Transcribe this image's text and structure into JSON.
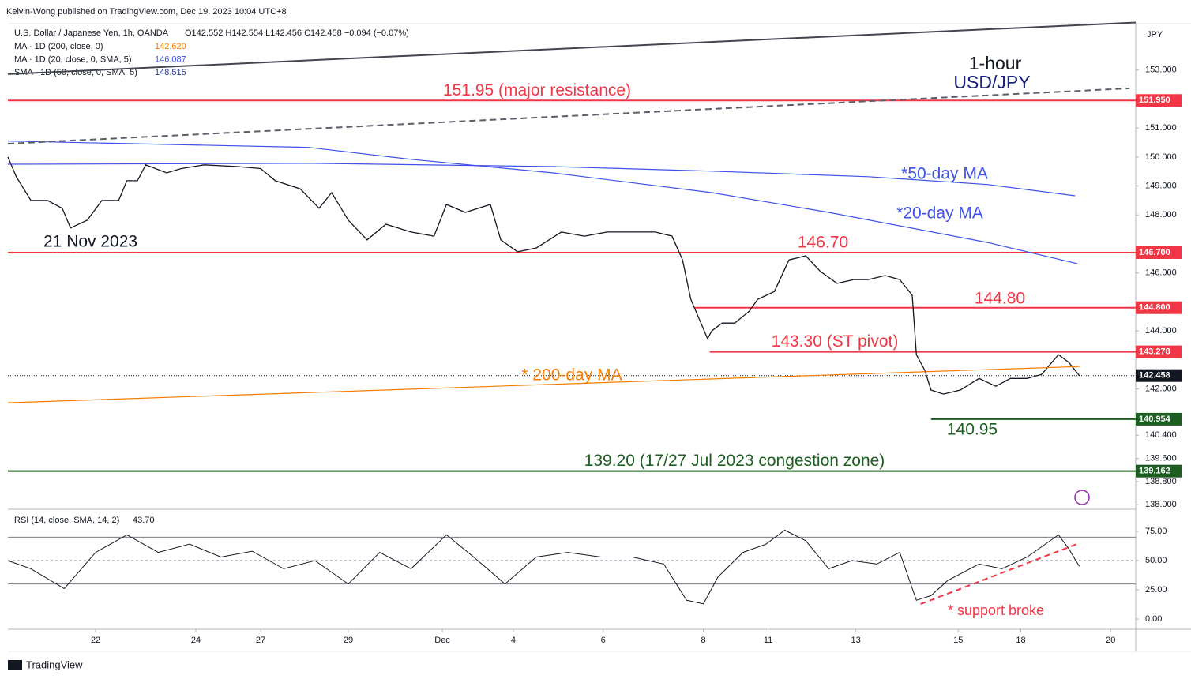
{
  "header": {
    "publisher": "Kelvin-Wong published on TradingView.com, Dec 19, 2023 10:04 UTC+8",
    "footer": "TradingView"
  },
  "legend": {
    "symbol": "U.S. Dollar / Japanese Yen, 1h, OANDA",
    "ohlc": "O142.552  H142.554  L142.456  C142.458  −0.094 (−0.07%)",
    "indicators": [
      {
        "name": "MA · 1D (200, close, 0)",
        "value": "142.620",
        "color": "#f57c00"
      },
      {
        "name": "MA · 1D (20, close, 0, SMA, 5)",
        "value": "146.087",
        "color": "#3f51e8"
      },
      {
        "name": "SMA · 1D (50, close, 0, SMA, 5)",
        "value": "148.515",
        "color": "#283593"
      }
    ]
  },
  "chart_data": {
    "type": "line",
    "title": "1-hour",
    "subtitle": "USD/JPY",
    "y_unit": "JPY",
    "xlim": [
      0,
      540
    ],
    "xticks": [
      {
        "value": 42,
        "label": "22"
      },
      {
        "value": 90,
        "label": "24"
      },
      {
        "value": 121,
        "label": "27"
      },
      {
        "value": 163,
        "label": "29"
      },
      {
        "value": 208,
        "label": "Dec"
      },
      {
        "value": 242,
        "label": "4"
      },
      {
        "value": 285,
        "label": "6"
      },
      {
        "value": 333,
        "label": "8"
      },
      {
        "value": 364,
        "label": "11"
      },
      {
        "value": 406,
        "label": "13"
      },
      {
        "value": 455,
        "label": "15"
      },
      {
        "value": 485,
        "label": "18"
      },
      {
        "value": 528,
        "label": "20"
      }
    ],
    "ylim": [
      137.9,
      154.6
    ],
    "yticks": [
      {
        "value": 153,
        "label": "153.000"
      },
      {
        "value": 151,
        "label": "151.000"
      },
      {
        "value": 150,
        "label": "150.000"
      },
      {
        "value": 149,
        "label": "149.000"
      },
      {
        "value": 148,
        "label": "148.000"
      },
      {
        "value": 146,
        "label": "146.000"
      },
      {
        "value": 144,
        "label": "144.000"
      },
      {
        "value": 142,
        "label": "142.000"
      },
      {
        "value": 140.4,
        "label": "140.400"
      },
      {
        "value": 139.6,
        "label": "139.600"
      },
      {
        "value": 138.8,
        "label": "138.800"
      },
      {
        "value": 138,
        "label": "138.000"
      }
    ],
    "series": [
      {
        "name": "USD/JPY",
        "color": "#131722",
        "x": [
          0,
          4,
          11,
          19,
          26,
          30,
          38,
          45,
          53,
          57,
          62,
          66,
          76,
          83,
          94,
          110,
          121,
          128,
          140,
          149,
          155,
          163,
          172,
          181,
          193,
          204,
          210,
          219,
          231,
          236,
          244,
          253,
          265,
          276,
          287,
          299,
          310,
          318,
          323,
          327,
          335,
          337,
          342,
          348,
          355,
          359,
          367,
          374,
          382,
          389,
          397,
          405,
          412,
          420,
          427,
          433,
          435,
          439,
          442,
          448,
          456,
          465,
          473,
          480,
          488,
          495,
          503,
          508,
          513
        ],
        "values": [
          150.0,
          149.32,
          148.5,
          148.5,
          148.23,
          147.55,
          147.82,
          148.5,
          148.5,
          149.18,
          149.18,
          149.73,
          149.45,
          149.6,
          149.73,
          149.67,
          149.6,
          149.18,
          148.9,
          148.23,
          148.77,
          147.82,
          147.14,
          147.68,
          147.41,
          147.27,
          148.36,
          148.09,
          148.36,
          147.14,
          146.73,
          146.86,
          147.41,
          147.27,
          147.41,
          147.41,
          147.41,
          147.27,
          146.45,
          145.09,
          143.73,
          144.0,
          144.27,
          144.27,
          144.68,
          145.09,
          145.36,
          146.45,
          146.59,
          146.05,
          145.64,
          145.77,
          145.77,
          145.91,
          145.77,
          145.23,
          143.18,
          142.64,
          141.96,
          141.82,
          141.96,
          142.36,
          142.09,
          142.36,
          142.36,
          142.5,
          143.18,
          142.91,
          142.458
        ]
      },
      {
        "name": "*50-day MA",
        "color": "#3f51e8",
        "x": [
          0,
          147,
          261,
          337,
          412,
          469,
          511
        ],
        "values": [
          149.75,
          149.78,
          149.67,
          149.51,
          149.32,
          149.05,
          148.66
        ]
      },
      {
        "name": "*20-day MA",
        "color": "#3f51e8",
        "x": [
          0,
          144,
          193,
          261,
          337,
          393,
          469,
          512
        ],
        "values": [
          150.55,
          150.33,
          149.92,
          149.45,
          148.77,
          148.09,
          147.05,
          146.32
        ]
      },
      {
        "name": "* 200-day MA",
        "color": "#f57c00",
        "x": [
          0,
          513
        ],
        "values": [
          141.52,
          142.77
        ]
      },
      {
        "name": "trendline",
        "color": "#434651",
        "x": [
          0,
          540
        ],
        "values": [
          152.86,
          154.64
        ]
      },
      {
        "name": "trendline-dashed",
        "color": "#5d606b",
        "dashed": true,
        "x": [
          0,
          537
        ],
        "values": [
          150.46,
          152.37
        ]
      }
    ],
    "levels": [
      {
        "value": 151.95,
        "label": "151.950",
        "color": "#f23645",
        "start": 0,
        "text": "151.95 (major resistance)"
      },
      {
        "value": 146.7,
        "label": "146.700",
        "color": "#f23645",
        "start": 0,
        "text": "146.70"
      },
      {
        "value": 144.8,
        "label": "144.800",
        "color": "#f23645",
        "start": 329,
        "text": "144.80"
      },
      {
        "value": 143.278,
        "label": "143.278",
        "color": "#f23645",
        "start": 336,
        "text": "143.30 (ST pivot)"
      },
      {
        "value": 140.954,
        "label": "140.954",
        "color": "#1b5e20",
        "start": 442,
        "text": "140.95"
      },
      {
        "value": 139.162,
        "label": "139.162",
        "color": "#1b5e20",
        "start": 0,
        "text": "139.20 (17/27 Jul 2023 congestion zone)"
      }
    ],
    "last_price": {
      "value": 142.458,
      "label": "142.458"
    },
    "annotation": "21 Nov 2023",
    "rsi": {
      "title": "RSI (14, close, SMA, 14, 2)",
      "last": "43.70",
      "color": "#131722",
      "ylim": [
        -7.4,
        90.5
      ],
      "yticks": [
        {
          "value": 75,
          "label": "75.00"
        },
        {
          "value": 50,
          "label": "50.00"
        },
        {
          "value": 25,
          "label": "25.00"
        },
        {
          "value": 0,
          "label": "0.00"
        }
      ],
      "bands": [
        70,
        50,
        30
      ],
      "x": [
        0,
        11,
        27,
        42,
        57,
        72,
        87,
        102,
        117,
        132,
        147,
        163,
        178,
        193,
        210,
        223,
        238,
        253,
        268,
        284,
        299,
        314,
        325,
        333,
        340,
        352,
        363,
        372,
        382,
        393,
        404,
        416,
        427,
        435,
        442,
        450,
        465,
        476,
        488,
        503,
        508,
        513
      ],
      "values": [
        50,
        43,
        26,
        57,
        72,
        57,
        64,
        53,
        58,
        43,
        50,
        30,
        57,
        43,
        72,
        53,
        30,
        53,
        57,
        53,
        53,
        47,
        16,
        13,
        36,
        57,
        64,
        76,
        67,
        43,
        50,
        47,
        57,
        16,
        20,
        33,
        47,
        43,
        53,
        72,
        60,
        45
      ],
      "support": {
        "text": "* support broke",
        "x": [
          437,
          513
        ],
        "values": [
          12.8,
          64.9
        ]
      }
    }
  }
}
